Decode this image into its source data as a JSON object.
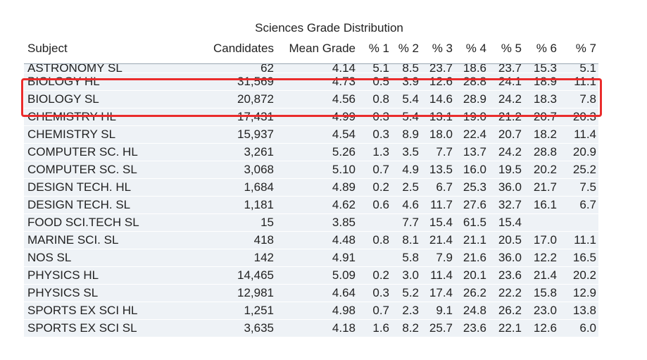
{
  "title": "Sciences Grade Distribution",
  "headers": [
    "Subject",
    "Candidates",
    "Mean Grade",
    "% 1",
    "% 2",
    "% 3",
    "% 4",
    "% 5",
    "% 6",
    "% 7"
  ],
  "rows": [
    [
      "ASTRONOMY SL",
      "62",
      "4.14",
      "5.1",
      "8.5",
      "23.7",
      "18.6",
      "23.7",
      "15.3",
      "5.1"
    ],
    [
      "BIOLOGY HL",
      "31,569",
      "4.73",
      "0.5",
      "3.9",
      "12.6",
      "28.8",
      "24.1",
      "18.9",
      "11.1"
    ],
    [
      "BIOLOGY SL",
      "20,872",
      "4.56",
      "0.8",
      "5.4",
      "14.6",
      "28.9",
      "24.2",
      "18.3",
      "7.8"
    ],
    [
      "CHEMISTRY HL",
      "17,431",
      "4.99",
      "0.3",
      "5.4",
      "13.1",
      "19.0",
      "21.2",
      "20.7",
      "20.3"
    ],
    [
      "CHEMISTRY SL",
      "15,937",
      "4.54",
      "0.3",
      "8.9",
      "18.0",
      "22.4",
      "20.7",
      "18.2",
      "11.4"
    ],
    [
      "COMPUTER SC. HL",
      "3,261",
      "5.26",
      "1.3",
      "3.5",
      "7.7",
      "13.7",
      "24.2",
      "28.8",
      "20.9"
    ],
    [
      "COMPUTER SC. SL",
      "3,068",
      "5.10",
      "0.7",
      "4.9",
      "13.5",
      "16.0",
      "19.5",
      "20.2",
      "25.2"
    ],
    [
      "DESIGN TECH. HL",
      "1,684",
      "4.89",
      "0.2",
      "2.5",
      "6.7",
      "25.3",
      "36.0",
      "21.7",
      "7.5"
    ],
    [
      "DESIGN TECH. SL",
      "1,181",
      "4.62",
      "0.6",
      "4.6",
      "11.7",
      "27.6",
      "32.7",
      "16.1",
      "6.7"
    ],
    [
      "FOOD SCI.TECH SL",
      "15",
      "3.85",
      "",
      "7.7",
      "15.4",
      "61.5",
      "15.4",
      "",
      ""
    ],
    [
      "MARINE SCI. SL",
      "418",
      "4.48",
      "0.8",
      "8.1",
      "21.4",
      "21.1",
      "20.5",
      "17.0",
      "11.1"
    ],
    [
      "NOS SL",
      "142",
      "4.91",
      "",
      "5.8",
      "7.9",
      "21.6",
      "36.0",
      "12.2",
      "16.5"
    ],
    [
      "PHYSICS HL",
      "14,465",
      "5.09",
      "0.2",
      "3.0",
      "11.4",
      "20.1",
      "23.6",
      "21.4",
      "20.2"
    ],
    [
      "PHYSICS SL",
      "12,981",
      "4.64",
      "0.3",
      "5.2",
      "17.4",
      "26.2",
      "22.2",
      "15.8",
      "12.9"
    ],
    [
      "SPORTS EX SCI HL",
      "1,251",
      "4.98",
      "0.7",
      "2.3",
      "9.1",
      "24.8",
      "26.2",
      "23.0",
      "13.8"
    ],
    [
      "SPORTS EX SCI SL",
      "3,635",
      "4.18",
      "1.6",
      "8.2",
      "25.7",
      "23.6",
      "22.1",
      "12.6",
      "6.0"
    ]
  ],
  "colors": {
    "highlight": "#ea2c2c",
    "row_band": "#eef2f6"
  }
}
